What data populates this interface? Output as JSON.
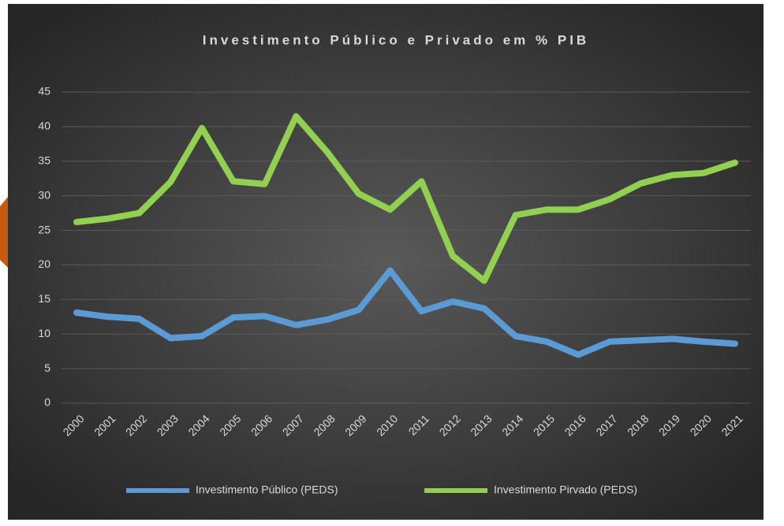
{
  "chart_data": {
    "type": "line",
    "title": "Investimento Público e Privado em % PIB",
    "categories": [
      "2000",
      "2001",
      "2002",
      "2003",
      "2004",
      "2005",
      "2006",
      "2007",
      "2008",
      "2009",
      "2010",
      "2011",
      "2012",
      "2013",
      "2014",
      "2015",
      "2016",
      "2017",
      "2018",
      "2019",
      "2020",
      "2021"
    ],
    "series": [
      {
        "name": "Investimento Público (PEDS)",
        "color": "#5b9bd5",
        "values": [
          13.1,
          12.5,
          12.2,
          9.4,
          9.7,
          12.4,
          12.6,
          11.3,
          12.1,
          13.5,
          19.2,
          13.3,
          14.7,
          13.7,
          9.7,
          8.9,
          7.0,
          8.9,
          9.1,
          9.3,
          8.9,
          8.6
        ]
      },
      {
        "name": "Investimento Pirvado (PEDS)",
        "color": "#92d050",
        "values": [
          26.2,
          26.7,
          27.5,
          32.0,
          39.8,
          32.1,
          31.7,
          41.5,
          36.3,
          30.3,
          28.0,
          32.1,
          21.3,
          17.7,
          27.2,
          28.0,
          28.0,
          29.5,
          31.8,
          33.0,
          33.3,
          34.8
        ]
      }
    ],
    "ylim": [
      0,
      45
    ],
    "yticks": [
      0,
      5,
      10,
      15,
      20,
      25,
      30,
      35,
      40,
      45
    ],
    "grid": true,
    "legend": "bottom"
  }
}
